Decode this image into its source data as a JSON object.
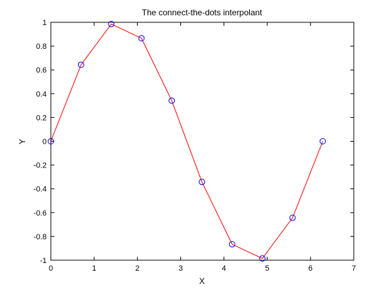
{
  "chart_data": {
    "type": "line",
    "title": "The connect-the-dots interpolant",
    "xlabel": "X",
    "ylabel": "Y",
    "xlim": [
      0,
      7
    ],
    "ylim": [
      -1,
      1
    ],
    "xticks": [
      0,
      1,
      2,
      3,
      4,
      5,
      6,
      7
    ],
    "yticks": [
      -1,
      -0.8,
      -0.6,
      -0.4,
      -0.2,
      0,
      0.2,
      0.4,
      0.6,
      0.8,
      1
    ],
    "xtick_labels": [
      "0",
      "1",
      "2",
      "3",
      "4",
      "5",
      "6",
      "7"
    ],
    "ytick_labels": [
      "-1",
      "-0.8",
      "-0.6",
      "-0.4",
      "-0.2",
      "0",
      "0.2",
      "0.4",
      "0.6",
      "0.8",
      "1"
    ],
    "grid": false,
    "series": [
      {
        "line_color": "#ff0000",
        "marker": "circle",
        "marker_color": "#0000ff",
        "x": [
          0,
          0.698,
          1.396,
          2.094,
          2.793,
          3.491,
          4.189,
          4.887,
          5.585,
          6.283
        ],
        "y": [
          0,
          0.643,
          0.985,
          0.866,
          0.342,
          -0.342,
          -0.866,
          -0.985,
          -0.643,
          0
        ]
      }
    ]
  }
}
